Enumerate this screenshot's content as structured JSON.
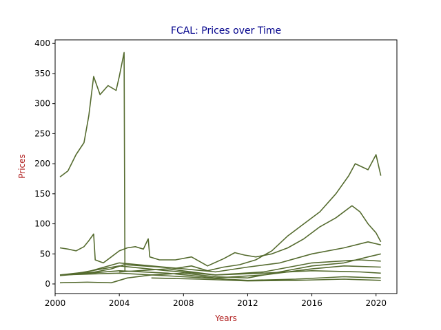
{
  "chart_data": {
    "type": "line",
    "title": "FCAL: Prices over Time",
    "xlabel": "Years",
    "ylabel": "Prices",
    "xlim": [
      2000,
      2021.3
    ],
    "ylim": [
      -16,
      406
    ],
    "xticks": [
      2000,
      2004,
      2008,
      2012,
      2016,
      2020
    ],
    "yticks": [
      0,
      50,
      100,
      150,
      200,
      250,
      300,
      350,
      400
    ],
    "grid": false,
    "legend": "none",
    "colors": {
      "line": "#556b2f",
      "title": "#00008b",
      "axis_title": "#b22222",
      "axes": "#000000"
    },
    "series": [
      {
        "x": [
          2000.3,
          2000.8,
          2001.3,
          2001.8,
          2002.1,
          2002.4,
          2002.8,
          2003.3,
          2003.8,
          2004.0,
          2004.3,
          2004.35
        ],
        "values": [
          178,
          188,
          215,
          235,
          280,
          345,
          315,
          330,
          322,
          345,
          385,
          20
        ]
      },
      {
        "x": [
          2000.3,
          2000.8,
          2001.3,
          2001.8,
          2002.1,
          2002.4,
          2002.5,
          2003.0,
          2003.5,
          2004.0,
          2004.5,
          2005.0,
          2005.5,
          2005.8,
          2005.9,
          2006.5,
          2007.5,
          2008.5,
          2009.5,
          2010.5,
          2011.2,
          2011.8,
          2012.5,
          2013.5,
          2014.5,
          2015.5,
          2016.5,
          2017.5,
          2018.5,
          2019.0,
          2019.5,
          2020.0,
          2020.3
        ],
        "values": [
          60,
          58,
          55,
          62,
          72,
          83,
          40,
          35,
          45,
          55,
          60,
          62,
          58,
          75,
          45,
          40,
          40,
          45,
          30,
          42,
          52,
          48,
          45,
          50,
          60,
          75,
          95,
          110,
          130,
          120,
          100,
          85,
          70
        ]
      },
      {
        "x": [
          2000.3,
          2001.5,
          2002.5,
          2003.5,
          2004.3,
          2005.5,
          2006.5,
          2007.5,
          2008.5,
          2009.5,
          2010.5,
          2011.5,
          2012.5,
          2013.5,
          2014.5,
          2015.5,
          2016.5,
          2017.5,
          2018.3,
          2018.7,
          2019.5,
          2020.0,
          2020.3
        ],
        "values": [
          15,
          17,
          20,
          25,
          32,
          30,
          28,
          26,
          30,
          22,
          28,
          32,
          40,
          55,
          80,
          100,
          120,
          150,
          180,
          200,
          190,
          215,
          180
        ]
      },
      {
        "x": [
          2000.3,
          2002.0,
          2004.0,
          2006.0,
          2008.0,
          2010.0,
          2012.0,
          2014.0,
          2016.0,
          2018.0,
          2019.5,
          2020.3
        ],
        "values": [
          15,
          20,
          35,
          30,
          25,
          20,
          28,
          35,
          50,
          60,
          70,
          65
        ]
      },
      {
        "x": [
          2000.3,
          2002.0,
          2003.5,
          2004.5,
          2006.0,
          2008.0,
          2010.0,
          2012.0,
          2014.0,
          2016.0,
          2018.0,
          2019.5,
          2020.3
        ],
        "values": [
          2,
          3,
          2,
          10,
          15,
          18,
          12,
          10,
          20,
          30,
          35,
          45,
          50
        ]
      },
      {
        "x": [
          2000.3,
          2004.0,
          2007.0,
          2010.0,
          2013.0,
          2016.0,
          2018.0,
          2020.3
        ],
        "values": [
          14,
          22,
          18,
          10,
          15,
          25,
          30,
          28
        ]
      },
      {
        "x": [
          2000.3,
          2004.0,
          2008.0,
          2012.0,
          2015.0,
          2018.0,
          2020.3
        ],
        "values": [
          15,
          18,
          12,
          6,
          8,
          12,
          10
        ]
      },
      {
        "x": [
          2001.0,
          2004.0,
          2007.0,
          2010.0,
          2013.0,
          2016.0,
          2019.0,
          2020.3
        ],
        "values": [
          16,
          30,
          22,
          15,
          20,
          35,
          40,
          38
        ]
      },
      {
        "x": [
          2004.0,
          2007.0,
          2010.0,
          2013.0,
          2016.0,
          2019.0,
          2020.3
        ],
        "values": [
          20,
          25,
          15,
          18,
          22,
          20,
          18
        ]
      },
      {
        "x": [
          2006.0,
          2009.0,
          2012.0,
          2015.0,
          2018.0,
          2020.3
        ],
        "values": [
          10,
          8,
          5,
          6,
          8,
          6
        ]
      }
    ]
  }
}
